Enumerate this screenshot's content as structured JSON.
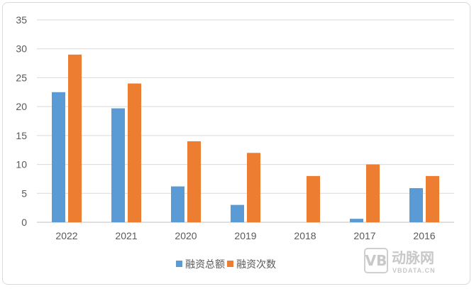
{
  "chart_data": {
    "type": "bar",
    "title": "",
    "xlabel": "",
    "ylabel": "",
    "categories": [
      "2022",
      "2021",
      "2020",
      "2019",
      "2018",
      "2017",
      "2016"
    ],
    "series": [
      {
        "name": "融资总额",
        "color": "#5b9bd5",
        "values": [
          22.5,
          19.7,
          6.2,
          3.0,
          0,
          0.6,
          5.9
        ]
      },
      {
        "name": "融资次数",
        "color": "#ed7d31",
        "values": [
          29,
          24,
          14,
          12,
          8,
          10,
          8
        ]
      }
    ],
    "ylim": [
      0,
      35
    ],
    "yticks": [
      0,
      5,
      10,
      15,
      20,
      25,
      30,
      35
    ],
    "grid": true,
    "legend_position": "bottom"
  },
  "watermark": {
    "logo_text": "VB",
    "main": "动脉网",
    "sub": "VBDATA.CN"
  }
}
